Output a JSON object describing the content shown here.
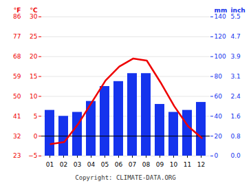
{
  "chart_data": {
    "type": "bar",
    "categories": [
      "01",
      "02",
      "03",
      "04",
      "05",
      "06",
      "07",
      "08",
      "09",
      "10",
      "11",
      "12"
    ],
    "series": [
      {
        "type": "bar",
        "color": "#1533ed",
        "axis": "y2",
        "values": [
          46,
          40,
          44,
          55,
          70,
          75,
          83,
          83,
          52,
          44,
          46,
          54
        ]
      },
      {
        "type": "line",
        "color": "#ee0000",
        "values": [
          -2.0,
          -1.5,
          3.0,
          8.5,
          14.0,
          17.5,
          19.5,
          19.0,
          13.5,
          7.5,
          2.5,
          -0.5
        ]
      }
    ],
    "ylim": [
      -5,
      30
    ],
    "yticks": [
      -5,
      0,
      5,
      10,
      15,
      20,
      25,
      30
    ],
    "yticks_f": [
      23,
      32,
      41,
      50,
      59,
      68,
      77,
      86
    ],
    "ylabel": "°C",
    "ylabel_f": "°F",
    "y2lim": [
      0,
      140
    ],
    "y2ticks": [
      0,
      20,
      40,
      60,
      80,
      100,
      120,
      140
    ],
    "y2ticks_inch": [
      "0.0",
      "0.8",
      "1.6",
      "2.4",
      "3.1",
      "3.9",
      "4.7",
      "5.5"
    ],
    "y2label": "mm",
    "y2label_inch": "inch",
    "hline": 0,
    "grid": true,
    "caption": "Copyright: CLIMATE-DATA.ORG"
  }
}
